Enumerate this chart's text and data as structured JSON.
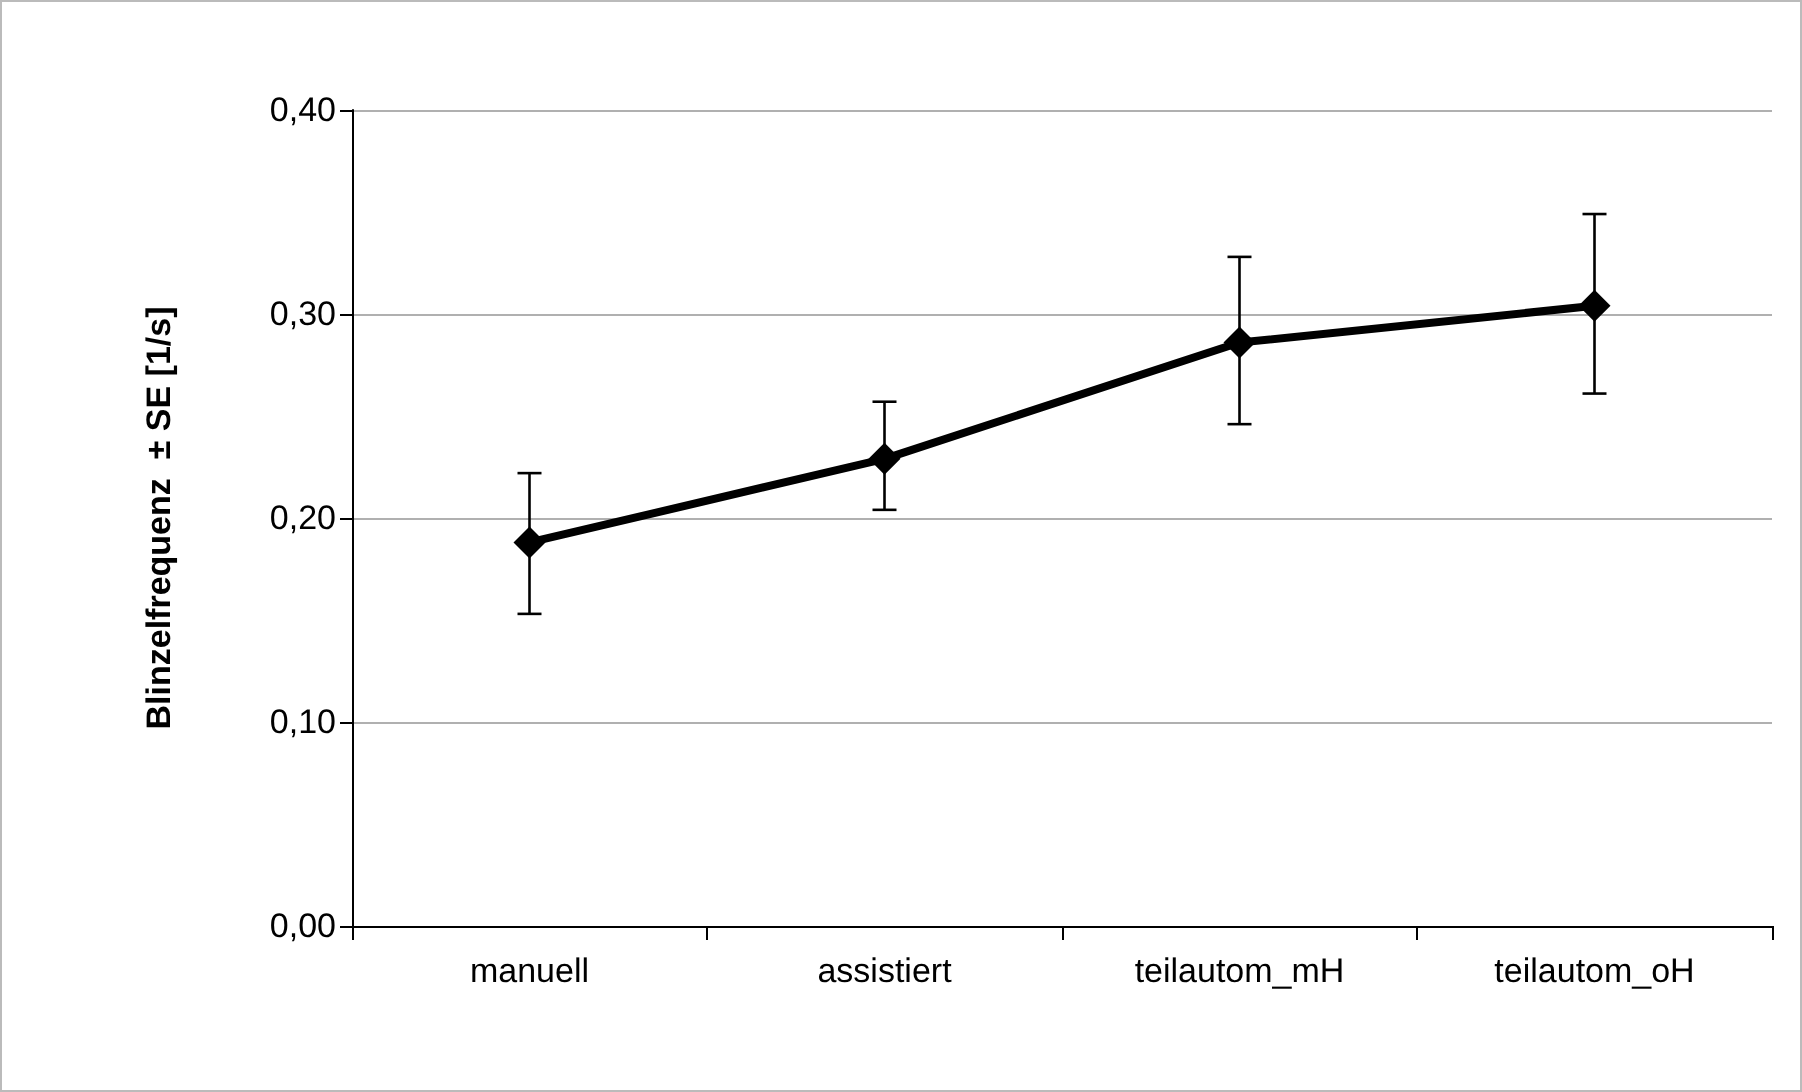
{
  "chart_data": {
    "type": "line",
    "ylabel": "Blinzelfrequenz  ± SE [1/s]",
    "categories": [
      "manuell",
      "assistiert",
      "teilautom_mH",
      "teilautom_oH"
    ],
    "series": [
      {
        "color": "#000000",
        "values": [
          0.188,
          0.229,
          0.286,
          0.304
        ],
        "errors": [
          [
            0.153,
            0.222
          ],
          [
            0.204,
            0.257
          ],
          [
            0.246,
            0.328
          ],
          [
            0.261,
            0.349
          ]
        ]
      }
    ],
    "ylim": [
      0,
      0.4
    ],
    "yticks": [
      {
        "value": 0,
        "label": "0,00"
      },
      {
        "value": 0.1,
        "label": "0,10"
      },
      {
        "value": 0.2,
        "label": "0,20"
      },
      {
        "value": 0.3,
        "label": "0,30"
      },
      {
        "value": 0.4,
        "label": "0,40"
      }
    ],
    "grid": "y",
    "marker": "diamond",
    "line_style": "solid"
  }
}
